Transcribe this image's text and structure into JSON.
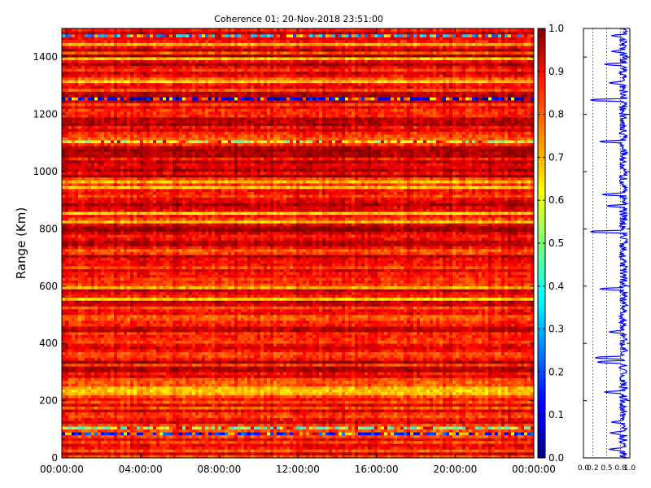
{
  "figure_title": "Coherence 01: 20-Nov-2018 23:51:00",
  "chart_data": [
    {
      "type": "heatmap",
      "title": "Coherence 01: 20-Nov-2018 23:51:00",
      "xlabel": "",
      "ylabel": "Range (Km)",
      "x_tick_labels": [
        "00:00:00",
        "04:00:00",
        "08:00:00",
        "12:00:00",
        "16:00:00",
        "20:00:00",
        "00:00:00"
      ],
      "x_range_hours": [
        0,
        24
      ],
      "y_ticks": [
        0,
        200,
        400,
        600,
        800,
        1000,
        1200,
        1400
      ],
      "y_tick_labels": [
        "0",
        "200",
        "400",
        "600",
        "800",
        "1000",
        "1200",
        "1400"
      ],
      "ylim": [
        0,
        1500
      ],
      "value_range": [
        0.0,
        1.0
      ],
      "colormap": "jet",
      "typical_value": 0.85,
      "low_coherence_bands_km": [
        {
          "range": 87,
          "value": 0.15
        },
        {
          "range": 1251,
          "value": 0.08
        },
        {
          "range": 1475,
          "value": 0.3
        },
        {
          "range": 1105,
          "value": 0.55
        },
        {
          "range": 108,
          "value": 0.45
        }
      ],
      "moderate_bands_km": [
        225,
        235,
        245,
        250,
        555,
        595,
        825,
        855,
        945,
        965,
        1315,
        1395,
        1420,
        1445
      ]
    },
    {
      "type": "bar",
      "title": "",
      "xlabel": "",
      "ylabel": "",
      "colorbar_ticks": [
        0.0,
        0.1,
        0.2,
        0.3,
        0.4,
        0.5,
        0.6,
        0.7,
        0.8,
        0.9,
        1.0
      ],
      "colorbar_tick_labels": [
        "0.0",
        "0.1",
        "0.2",
        "0.3",
        "0.4",
        "0.5",
        "0.6",
        "0.7",
        "0.8",
        "0.9",
        "1.0"
      ]
    },
    {
      "type": "line",
      "title": "",
      "xlabel": "",
      "ylabel": "",
      "xlim": [
        0.0,
        1.0
      ],
      "x_tick_labels": [
        "0.0",
        "0.2",
        "0.5",
        "0.8",
        "1.0"
      ],
      "ylim": [
        0,
        1500
      ],
      "series_color": "#0000ff",
      "dips": [
        {
          "range": 30,
          "value": 0.55
        },
        {
          "range": 87,
          "value": 0.55
        },
        {
          "range": 125,
          "value": 0.6
        },
        {
          "range": 230,
          "value": 0.45
        },
        {
          "range": 335,
          "value": 0.3
        },
        {
          "range": 350,
          "value": 0.25
        },
        {
          "range": 440,
          "value": 0.55
        },
        {
          "range": 590,
          "value": 0.35
        },
        {
          "range": 790,
          "value": 0.15
        },
        {
          "range": 880,
          "value": 0.5
        },
        {
          "range": 920,
          "value": 0.4
        },
        {
          "range": 1105,
          "value": 0.35
        },
        {
          "range": 1250,
          "value": 0.15
        },
        {
          "range": 1310,
          "value": 0.55
        },
        {
          "range": 1375,
          "value": 0.45
        },
        {
          "range": 1420,
          "value": 0.6
        },
        {
          "range": 1475,
          "value": 0.6
        }
      ]
    }
  ]
}
